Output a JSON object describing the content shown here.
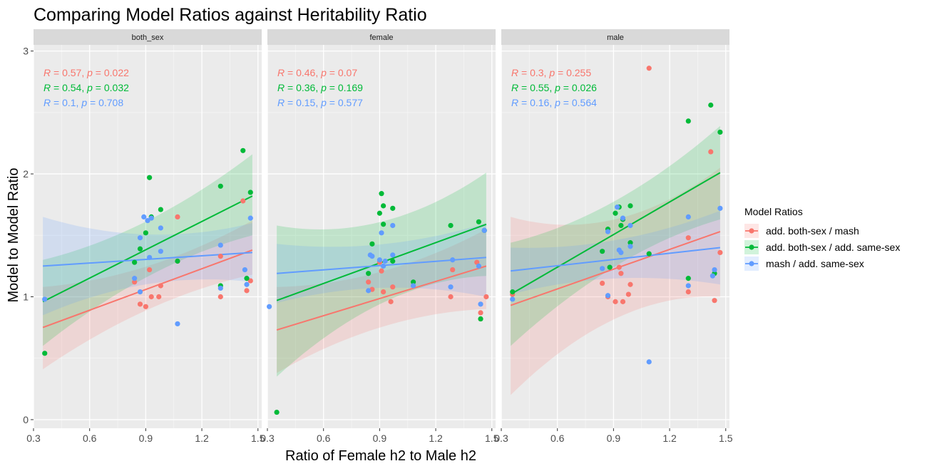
{
  "chart_data": {
    "type": "scatter",
    "title": "Comparing Model Ratios against Heritability Ratio",
    "xlabel": "Ratio of Female h2 to Male h2",
    "ylabel": "Model to Model Ratio",
    "xlim": [
      0.3,
      1.52
    ],
    "ylim": [
      -0.07,
      3.05
    ],
    "x_ticks": [
      0.3,
      0.6,
      0.9,
      1.2,
      1.5
    ],
    "x_tick_labels": [
      "0.3",
      "0.6",
      "0.9",
      "1.2",
      "1.5"
    ],
    "y_ticks": [
      0,
      1,
      2,
      3
    ],
    "y_tick_labels": [
      "0",
      "1",
      "2",
      "3"
    ],
    "grid": true,
    "legend_position": "right",
    "legend": {
      "title": "Model Ratios",
      "entries": [
        {
          "key": "mash",
          "label": "add. both-sex / mash",
          "color": "#F8766D"
        },
        {
          "key": "same",
          "label": "add. both-sex / add. same-sex",
          "color": "#00BA38"
        },
        {
          "key": "mash_same",
          "label": "mash / add. same-sex",
          "color": "#619CFF"
        }
      ]
    },
    "panels": [
      {
        "strip": "both_sex",
        "annotations": [
          {
            "r": "0.57",
            "p": "0.022",
            "color": "#F8766D"
          },
          {
            "r": "0.54",
            "p": "0.032",
            "color": "#00BA38"
          },
          {
            "r": "0.1",
            "p": "0.708",
            "color": "#619CFF"
          }
        ],
        "series": [
          {
            "key": "mash",
            "color": "#F8766D",
            "fit": [
              0.75,
              1.38
            ],
            "ci_low": [
              0.41,
              1.18
            ],
            "ci_high": [
              1.08,
              1.62
            ],
            "points": [
              [
                0.84,
                1.12
              ],
              [
                0.87,
                0.94
              ],
              [
                0.9,
                0.92
              ],
              [
                0.92,
                1.22
              ],
              [
                0.93,
                1.0
              ],
              [
                0.97,
                1.0
              ],
              [
                0.98,
                1.09
              ],
              [
                1.07,
                1.65
              ],
              [
                1.07,
                1.29
              ],
              [
                1.3,
                1.0
              ],
              [
                1.3,
                1.33
              ],
              [
                1.42,
                1.78
              ],
              [
                1.44,
                1.05
              ],
              [
                1.46,
                1.13
              ]
            ]
          },
          {
            "key": "same",
            "color": "#00BA38",
            "fit": [
              0.96,
              1.82
            ],
            "ci_low": [
              0.6,
              1.5
            ],
            "ci_high": [
              1.3,
              2.16
            ],
            "points": [
              [
                0.36,
                0.54
              ],
              [
                0.84,
                1.28
              ],
              [
                0.87,
                1.39
              ],
              [
                0.9,
                1.52
              ],
              [
                0.92,
                1.97
              ],
              [
                0.93,
                1.65
              ],
              [
                0.98,
                1.71
              ],
              [
                1.07,
                1.29
              ],
              [
                1.3,
                1.9
              ],
              [
                1.3,
                1.09
              ],
              [
                1.42,
                2.19
              ],
              [
                1.44,
                1.15
              ],
              [
                1.46,
                1.85
              ]
            ]
          },
          {
            "key": "mash_same",
            "color": "#619CFF",
            "fit": [
              1.25,
              1.36
            ],
            "ci_low": [
              0.85,
              1.12
            ],
            "ci_high": [
              1.65,
              1.6
            ],
            "points": [
              [
                0.36,
                0.98
              ],
              [
                0.84,
                1.15
              ],
              [
                0.87,
                1.48
              ],
              [
                0.87,
                1.04
              ],
              [
                0.89,
                1.65
              ],
              [
                0.91,
                1.62
              ],
              [
                0.92,
                1.32
              ],
              [
                0.93,
                1.64
              ],
              [
                0.98,
                1.56
              ],
              [
                0.98,
                1.37
              ],
              [
                1.07,
                0.78
              ],
              [
                1.3,
                1.42
              ],
              [
                1.3,
                1.07
              ],
              [
                1.43,
                1.22
              ],
              [
                1.44,
                1.1
              ],
              [
                1.46,
                1.64
              ]
            ]
          }
        ]
      },
      {
        "strip": "female",
        "annotations": [
          {
            "r": "0.46",
            "p": "0.07",
            "color": "#F8766D"
          },
          {
            "r": "0.36",
            "p": "0.169",
            "color": "#00BA38"
          },
          {
            "r": "0.15",
            "p": "0.577",
            "color": "#619CFF"
          }
        ],
        "series": [
          {
            "key": "mash",
            "color": "#F8766D",
            "fit": [
              0.73,
              1.25
            ],
            "ci_low": [
              0.38,
              0.9
            ],
            "ci_high": [
              1.08,
              1.55
            ],
            "points": [
              [
                0.84,
                1.12
              ],
              [
                0.86,
                1.06
              ],
              [
                0.9,
                1.28
              ],
              [
                0.91,
                1.21
              ],
              [
                0.92,
                1.04
              ],
              [
                0.96,
                0.96
              ],
              [
                0.97,
                1.08
              ],
              [
                1.08,
                1.09
              ],
              [
                1.28,
                1.0
              ],
              [
                1.29,
                1.22
              ],
              [
                1.42,
                1.28
              ],
              [
                1.44,
                0.87
              ],
              [
                1.44,
                0.82
              ],
              [
                1.47,
                1.0
              ]
            ]
          },
          {
            "key": "same",
            "color": "#00BA38",
            "fit": [
              0.97,
              1.59
            ],
            "ci_low": [
              0.35,
              1.17
            ],
            "ci_high": [
              1.58,
              2.01
            ],
            "points": [
              [
                0.35,
                0.06
              ],
              [
                0.84,
                1.19
              ],
              [
                0.86,
                1.43
              ],
              [
                0.9,
                1.68
              ],
              [
                0.91,
                1.84
              ],
              [
                0.92,
                1.74
              ],
              [
                0.92,
                1.59
              ],
              [
                0.97,
                1.72
              ],
              [
                0.97,
                1.29
              ],
              [
                1.08,
                1.12
              ],
              [
                1.28,
                1.58
              ],
              [
                1.43,
                1.61
              ],
              [
                1.44,
                0.82
              ],
              [
                1.46,
                1.54
              ]
            ]
          },
          {
            "key": "mash_same",
            "color": "#619CFF",
            "fit": [
              1.19,
              1.32
            ],
            "ci_low": [
              0.95,
              1.0
            ],
            "ci_high": [
              1.43,
              1.6
            ],
            "points": [
              [
                0.31,
                0.92
              ],
              [
                0.84,
                1.05
              ],
              [
                0.85,
                1.34
              ],
              [
                0.86,
                1.33
              ],
              [
                0.9,
                1.3
              ],
              [
                0.91,
                1.52
              ],
              [
                0.92,
                1.25
              ],
              [
                0.93,
                1.29
              ],
              [
                0.97,
                1.58
              ],
              [
                0.97,
                1.34
              ],
              [
                1.08,
                1.09
              ],
              [
                1.28,
                1.08
              ],
              [
                1.29,
                1.3
              ],
              [
                1.43,
                1.25
              ],
              [
                1.44,
                0.94
              ],
              [
                1.46,
                1.54
              ]
            ]
          }
        ]
      },
      {
        "strip": "male",
        "annotations": [
          {
            "r": "0.3",
            "p": "0.255",
            "color": "#F8766D"
          },
          {
            "r": "0.55",
            "p": "0.026",
            "color": "#00BA38"
          },
          {
            "r": "0.16",
            "p": "0.564",
            "color": "#619CFF"
          }
        ],
        "series": [
          {
            "key": "mash",
            "color": "#F8766D",
            "fit": [
              0.93,
              1.53
            ],
            "ci_low": [
              0.2,
              1.0
            ],
            "ci_high": [
              1.65,
              2.05
            ],
            "points": [
              [
                0.36,
                1.02
              ],
              [
                0.84,
                1.11
              ],
              [
                0.87,
                1.0
              ],
              [
                0.91,
                0.96
              ],
              [
                0.93,
                1.24
              ],
              [
                0.94,
                1.19
              ],
              [
                0.95,
                0.96
              ],
              [
                0.98,
                1.02
              ],
              [
                0.99,
                1.1
              ],
              [
                1.09,
                2.86
              ],
              [
                1.3,
                1.48
              ],
              [
                1.3,
                1.04
              ],
              [
                1.42,
                2.18
              ],
              [
                1.44,
                0.97
              ],
              [
                1.47,
                1.36
              ]
            ]
          },
          {
            "key": "same",
            "color": "#00BA38",
            "fit": [
              1.02,
              2.01
            ],
            "ci_low": [
              0.6,
              1.63
            ],
            "ci_high": [
              1.44,
              2.39
            ],
            "points": [
              [
                0.36,
                1.04
              ],
              [
                0.84,
                1.37
              ],
              [
                0.87,
                1.55
              ],
              [
                0.88,
                1.24
              ],
              [
                0.91,
                1.68
              ],
              [
                0.93,
                1.73
              ],
              [
                0.94,
                1.58
              ],
              [
                0.95,
                1.63
              ],
              [
                0.99,
                1.74
              ],
              [
                0.99,
                1.44
              ],
              [
                1.09,
                1.35
              ],
              [
                1.3,
                2.43
              ],
              [
                1.3,
                1.15
              ],
              [
                1.42,
                2.56
              ],
              [
                1.44,
                1.19
              ],
              [
                1.47,
                2.34
              ]
            ]
          },
          {
            "key": "mash_same",
            "color": "#619CFF",
            "fit": [
              1.21,
              1.4
            ],
            "ci_low": [
              1.02,
              1.1
            ],
            "ci_high": [
              1.4,
              1.7
            ],
            "points": [
              [
                0.36,
                0.98
              ],
              [
                0.84,
                1.23
              ],
              [
                0.87,
                1.53
              ],
              [
                0.87,
                1.01
              ],
              [
                0.92,
                1.73
              ],
              [
                0.93,
                1.38
              ],
              [
                0.94,
                1.36
              ],
              [
                0.95,
                1.64
              ],
              [
                0.99,
                1.58
              ],
              [
                0.99,
                1.41
              ],
              [
                1.09,
                0.47
              ],
              [
                1.3,
                1.65
              ],
              [
                1.3,
                1.09
              ],
              [
                1.43,
                1.17
              ],
              [
                1.44,
                1.22
              ],
              [
                1.47,
                1.72
              ]
            ]
          }
        ]
      }
    ]
  }
}
